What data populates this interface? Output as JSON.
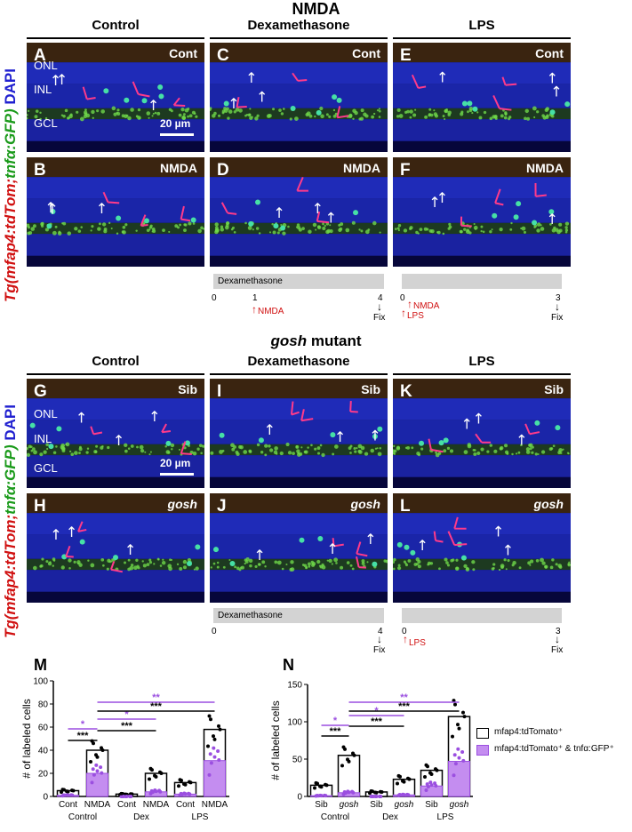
{
  "section1": {
    "title": "NMDA",
    "columns": [
      "Control",
      "Dexamethasone",
      "LPS"
    ],
    "ylabel_parts": [
      "Tg(mfap4:tdTom;",
      "tnfα:GFP)",
      " DAPI"
    ],
    "panels": [
      {
        "letter": "A",
        "cond": "Cont"
      },
      {
        "letter": "C",
        "cond": "Cont"
      },
      {
        "letter": "E",
        "cond": "Cont"
      },
      {
        "letter": "B",
        "cond": "NMDA"
      },
      {
        "letter": "D",
        "cond": "NMDA"
      },
      {
        "letter": "F",
        "cond": "NMDA"
      }
    ],
    "layers": [
      "ONL",
      "INL",
      "GCL"
    ],
    "scale": "20 µm",
    "timeline_dex": {
      "bar": "Dexamethasone",
      "t0": "0",
      "t1": "1",
      "t4": "4",
      "nmda": "NMDA",
      "fix": "Fix"
    },
    "timeline_lps": {
      "t0": "0",
      "t3": "3",
      "nmda": "NMDA",
      "lps": "LPS",
      "fix": "Fix"
    }
  },
  "section2": {
    "title_italic": "gosh",
    "title_rest": " mutant",
    "columns": [
      "Control",
      "Dexamethasone",
      "LPS"
    ],
    "ylabel_parts": [
      "Tg(mfap4:tdTom;",
      "tnfα:GFP)",
      " DAPI"
    ],
    "panels": [
      {
        "letter": "G",
        "cond": "Sib"
      },
      {
        "letter": "I",
        "cond": "Sib"
      },
      {
        "letter": "K",
        "cond": "Sib"
      },
      {
        "letter": "H",
        "cond": "gosh"
      },
      {
        "letter": "J",
        "cond": "gosh"
      },
      {
        "letter": "L",
        "cond": "gosh"
      }
    ],
    "layers": [
      "ONL",
      "INL",
      "GCL"
    ],
    "scale": "20 µm",
    "timeline_dex": {
      "bar": "Dexamethasone",
      "t0": "0",
      "t4": "4",
      "fix": "Fix"
    },
    "timeline_lps": {
      "t0": "0",
      "t3": "3",
      "lps": "LPS",
      "fix": "Fix"
    }
  },
  "legend": {
    "item1": "mfap4:tdTomato⁺",
    "item2": "mfap4:tdTomato⁺ & tnfα:GFP⁺"
  },
  "colors": {
    "purple": "#9b4fe0",
    "purple_fill": "#c48df0",
    "red": "#d01010",
    "panel_bg": "#06063a"
  },
  "chart_data": [
    {
      "letter": "M",
      "type": "bar",
      "ylabel": "# of labeled cells",
      "ylim": [
        0,
        100
      ],
      "yticks": [
        0,
        20,
        40,
        60,
        80,
        100
      ],
      "categories": [
        "Cont",
        "NMDA",
        "Cont",
        "NMDA",
        "Cont",
        "NMDA"
      ],
      "groups": [
        "Control",
        "Dex",
        "LPS"
      ],
      "series": [
        {
          "name": "mfap4:tdTomato⁺",
          "values": [
            5,
            40,
            2,
            20,
            12,
            58
          ]
        },
        {
          "name": "mfap4:tdTomato⁺ & tnfα:GFP⁺",
          "values": [
            1,
            20,
            0,
            4,
            2,
            31
          ]
        }
      ],
      "significance": [
        {
          "from": 0,
          "to": 1,
          "label": "*",
          "color": "purple"
        },
        {
          "from": 0,
          "to": 1,
          "label": "***",
          "color": "black"
        },
        {
          "from": 1,
          "to": 3,
          "label": "*",
          "color": "purple"
        },
        {
          "from": 1,
          "to": 3,
          "label": "***",
          "color": "black"
        },
        {
          "from": 1,
          "to": 5,
          "label": "**",
          "color": "purple"
        },
        {
          "from": 1,
          "to": 5,
          "label": "***",
          "color": "black"
        }
      ]
    },
    {
      "letter": "N",
      "type": "bar",
      "ylabel": "# of labeled cells",
      "ylim": [
        0,
        150
      ],
      "yticks": [
        0,
        50,
        100,
        150
      ],
      "categories": [
        "Sib",
        "gosh",
        "Sib",
        "gosh",
        "Sib",
        "gosh"
      ],
      "groups": [
        "Control",
        "Dex",
        "LPS"
      ],
      "series": [
        {
          "name": "mfap4:tdTomato⁺",
          "values": [
            15,
            55,
            6,
            23,
            35,
            107
          ]
        },
        {
          "name": "mfap4:tdTomato⁺ & tnfα:GFP⁺",
          "values": [
            1,
            5,
            0,
            2,
            14,
            47
          ]
        }
      ],
      "significance": [
        {
          "from": 0,
          "to": 1,
          "label": "*",
          "color": "purple"
        },
        {
          "from": 0,
          "to": 1,
          "label": "***",
          "color": "black"
        },
        {
          "from": 1,
          "to": 3,
          "label": "*",
          "color": "purple"
        },
        {
          "from": 1,
          "to": 3,
          "label": "***",
          "color": "black"
        },
        {
          "from": 1,
          "to": 5,
          "label": "**",
          "color": "purple"
        },
        {
          "from": 1,
          "to": 5,
          "label": "***",
          "color": "black"
        }
      ]
    }
  ]
}
